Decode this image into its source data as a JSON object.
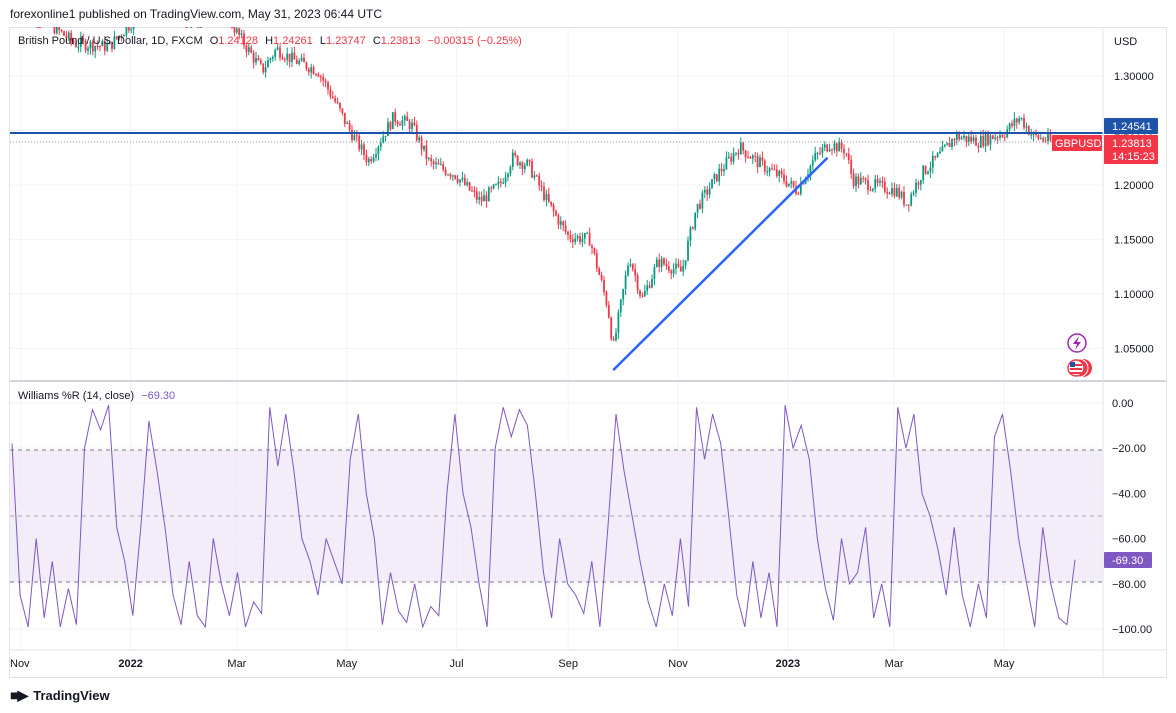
{
  "header": {
    "text": "forexonline1 published on TradingView.com, May 31, 2023 06:44 UTC"
  },
  "legend": {
    "symbol": "British Pound / U.S. Dollar, 1D, FXCM",
    "open_label": "O",
    "open": "1.24128",
    "high_label": "H",
    "high": "1.24261",
    "low_label": "L",
    "low": "1.23747",
    "close_label": "C",
    "close": "1.23813",
    "change": "−0.00315 (−0.25%)"
  },
  "currency": "USD",
  "price_tag": {
    "symbol": "GBPUSD",
    "price": "1.23813",
    "countdown": "14:15:23"
  },
  "level_tag": "1.24541",
  "indicator": {
    "name": "Williams %R (14, close)",
    "value": "−69.30",
    "tag": "-69.30"
  },
  "footer": {
    "brand": "TradingView"
  },
  "colors": {
    "up": "#089981",
    "down": "#f23645",
    "indicator": "#7e57c2",
    "band": "#ede7f6",
    "line": "#2962ff",
    "level": "#1e53a8"
  },
  "chart_data": [
    {
      "type": "candlestick",
      "symbol": "GBPUSD",
      "x_tick_labels": [
        "Nov",
        "2022",
        "Mar",
        "May",
        "Jul",
        "Sep",
        "Nov",
        "2023",
        "Mar",
        "May"
      ],
      "y_tick_labels": [
        "1.30000",
        "1.25000",
        "1.20000",
        "1.15000",
        "1.10000",
        "1.05000"
      ],
      "ylim": [
        1.02,
        1.345
      ],
      "horizontal_level": 1.24541,
      "last_price": 1.23813,
      "trendline": {
        "start": [
          "2022-09-26",
          1.03
        ],
        "end": [
          "2023-01-23",
          1.225
        ]
      },
      "close_path": [
        [
          "2021-11-01",
          1.368
        ],
        [
          "2021-12-01",
          1.33
        ],
        [
          "2021-12-20",
          1.327
        ],
        [
          "2022-01-13",
          1.37
        ],
        [
          "2022-02-01",
          1.35
        ],
        [
          "2022-02-23",
          1.358
        ],
        [
          "2022-03-01",
          1.34
        ],
        [
          "2022-03-15",
          1.305
        ],
        [
          "2022-03-23",
          1.325
        ],
        [
          "2022-04-01",
          1.315
        ],
        [
          "2022-04-15",
          1.305
        ],
        [
          "2022-04-25",
          1.275
        ],
        [
          "2022-05-01",
          1.255
        ],
        [
          "2022-05-13",
          1.222
        ],
        [
          "2022-05-27",
          1.262
        ],
        [
          "2022-06-06",
          1.255
        ],
        [
          "2022-06-16",
          1.22
        ],
        [
          "2022-06-30",
          1.21
        ],
        [
          "2022-07-14",
          1.185
        ],
        [
          "2022-07-25",
          1.2
        ],
        [
          "2022-08-01",
          1.225
        ],
        [
          "2022-08-10",
          1.218
        ],
        [
          "2022-08-22",
          1.18
        ],
        [
          "2022-09-01",
          1.153
        ],
        [
          "2022-09-13",
          1.15
        ],
        [
          "2022-09-23",
          1.088
        ],
        [
          "2022-09-26",
          1.05
        ],
        [
          "2022-10-05",
          1.135
        ],
        [
          "2022-10-12",
          1.095
        ],
        [
          "2022-10-21",
          1.13
        ],
        [
          "2022-11-03",
          1.12
        ],
        [
          "2022-11-11",
          1.178
        ],
        [
          "2022-11-24",
          1.212
        ],
        [
          "2022-12-05",
          1.235
        ],
        [
          "2022-12-16",
          1.22
        ],
        [
          "2022-12-30",
          1.205
        ],
        [
          "2023-01-06",
          1.195
        ],
        [
          "2023-01-16",
          1.225
        ],
        [
          "2023-01-24",
          1.238
        ],
        [
          "2023-02-02",
          1.232
        ],
        [
          "2023-02-06",
          1.205
        ],
        [
          "2023-02-17",
          1.2
        ],
        [
          "2023-03-02",
          1.195
        ],
        [
          "2023-03-08",
          1.183
        ],
        [
          "2023-03-16",
          1.21
        ],
        [
          "2023-03-28",
          1.23
        ],
        [
          "2023-04-04",
          1.245
        ],
        [
          "2023-04-17",
          1.24
        ],
        [
          "2023-05-01",
          1.248
        ],
        [
          "2023-05-10",
          1.262
        ],
        [
          "2023-05-17",
          1.245
        ],
        [
          "2023-05-31",
          1.238
        ]
      ]
    },
    {
      "type": "line",
      "name": "Williams %R (14, close)",
      "y_tick_labels": [
        "0.00",
        "−20.00",
        "−40.00",
        "−60.00",
        "−80.00",
        "−100.00"
      ],
      "ylim": [
        -103,
        3
      ],
      "band": [
        -80,
        -20
      ],
      "midline": -50,
      "last_value": -69.3,
      "waypoints": [
        -18,
        -85,
        -99,
        -60,
        -95,
        -70,
        -99,
        -82,
        -98,
        -20,
        -3,
        -12,
        -1,
        -55,
        -70,
        -94,
        -55,
        -8,
        -30,
        -55,
        -85,
        -98,
        -70,
        -94,
        -99,
        -60,
        -80,
        -94,
        -75,
        -99,
        -88,
        -93,
        -2,
        -28,
        -5,
        -30,
        -60,
        -70,
        -85,
        -60,
        -70,
        -80,
        -25,
        -5,
        -40,
        -60,
        -98,
        -75,
        -92,
        -97,
        -80,
        -99,
        -90,
        -94,
        -40,
        -5,
        -40,
        -55,
        -80,
        -99,
        -20,
        -2,
        -15,
        -3,
        -10,
        -40,
        -75,
        -95,
        -60,
        -80,
        -85,
        -93,
        -70,
        -99,
        -55,
        -5,
        -30,
        -50,
        -70,
        -88,
        -99,
        -80,
        -94,
        -60,
        -90,
        -2,
        -25,
        -5,
        -18,
        -50,
        -85,
        -99,
        -70,
        -95,
        -75,
        -99,
        -1,
        -20,
        -10,
        -25,
        -60,
        -82,
        -96,
        -60,
        -80,
        -75,
        -55,
        -95,
        -80,
        -99,
        -2,
        -20,
        -5,
        -40,
        -50,
        -65,
        -85,
        -55,
        -85,
        -99,
        -80,
        -95,
        -15,
        -5,
        -30,
        -60,
        -80,
        -99,
        -55,
        -80,
        -95,
        -98,
        -69.3
      ]
    }
  ]
}
